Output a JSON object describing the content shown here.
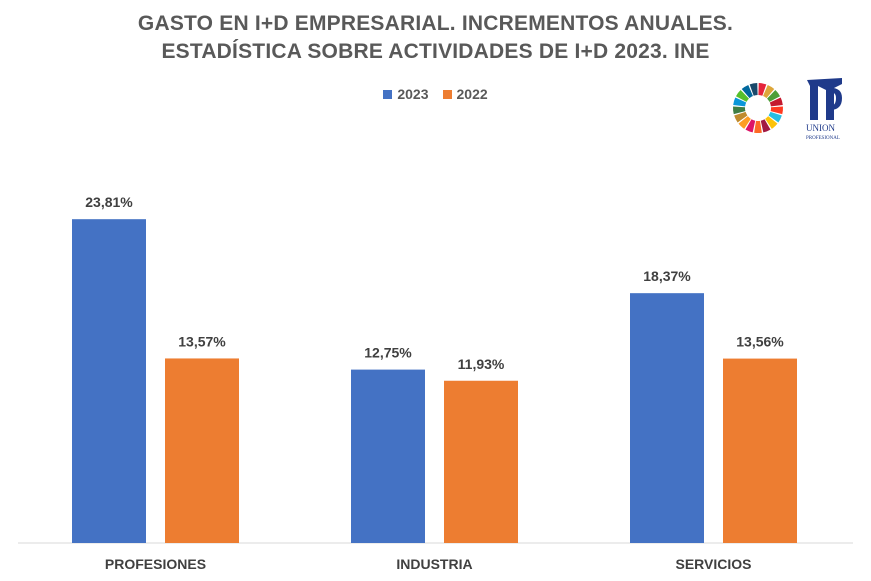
{
  "chart_data": {
    "type": "bar",
    "title_lines": [
      "GASTO EN I+D EMPRESARIAL. INCREMENTOS ANUALES.",
      "ESTADÍSTICA SOBRE ACTIVIDADES DE I+D 2023. INE"
    ],
    "categories": [
      "PROFESIONES",
      "INDUSTRIA",
      "SERVICIOS"
    ],
    "series": [
      {
        "name": "2023",
        "color": "#4472C4",
        "values": [
          23.81,
          12.75,
          18.37
        ],
        "labels": [
          "23,81%",
          "12,75%",
          "18,37%"
        ]
      },
      {
        "name": "2022",
        "color": "#ED7D31",
        "values": [
          13.57,
          11.93,
          13.56
        ],
        "labels": [
          "13,57%",
          "11,93%",
          "13,56%"
        ]
      }
    ],
    "xlabel": "",
    "ylabel": "",
    "ylim": [
      0,
      30
    ],
    "grid": false,
    "legend_position": "top-center"
  },
  "logos": {
    "union_profesional_line1": "UNION",
    "union_profesional_line2": "PROFESIONAL"
  }
}
